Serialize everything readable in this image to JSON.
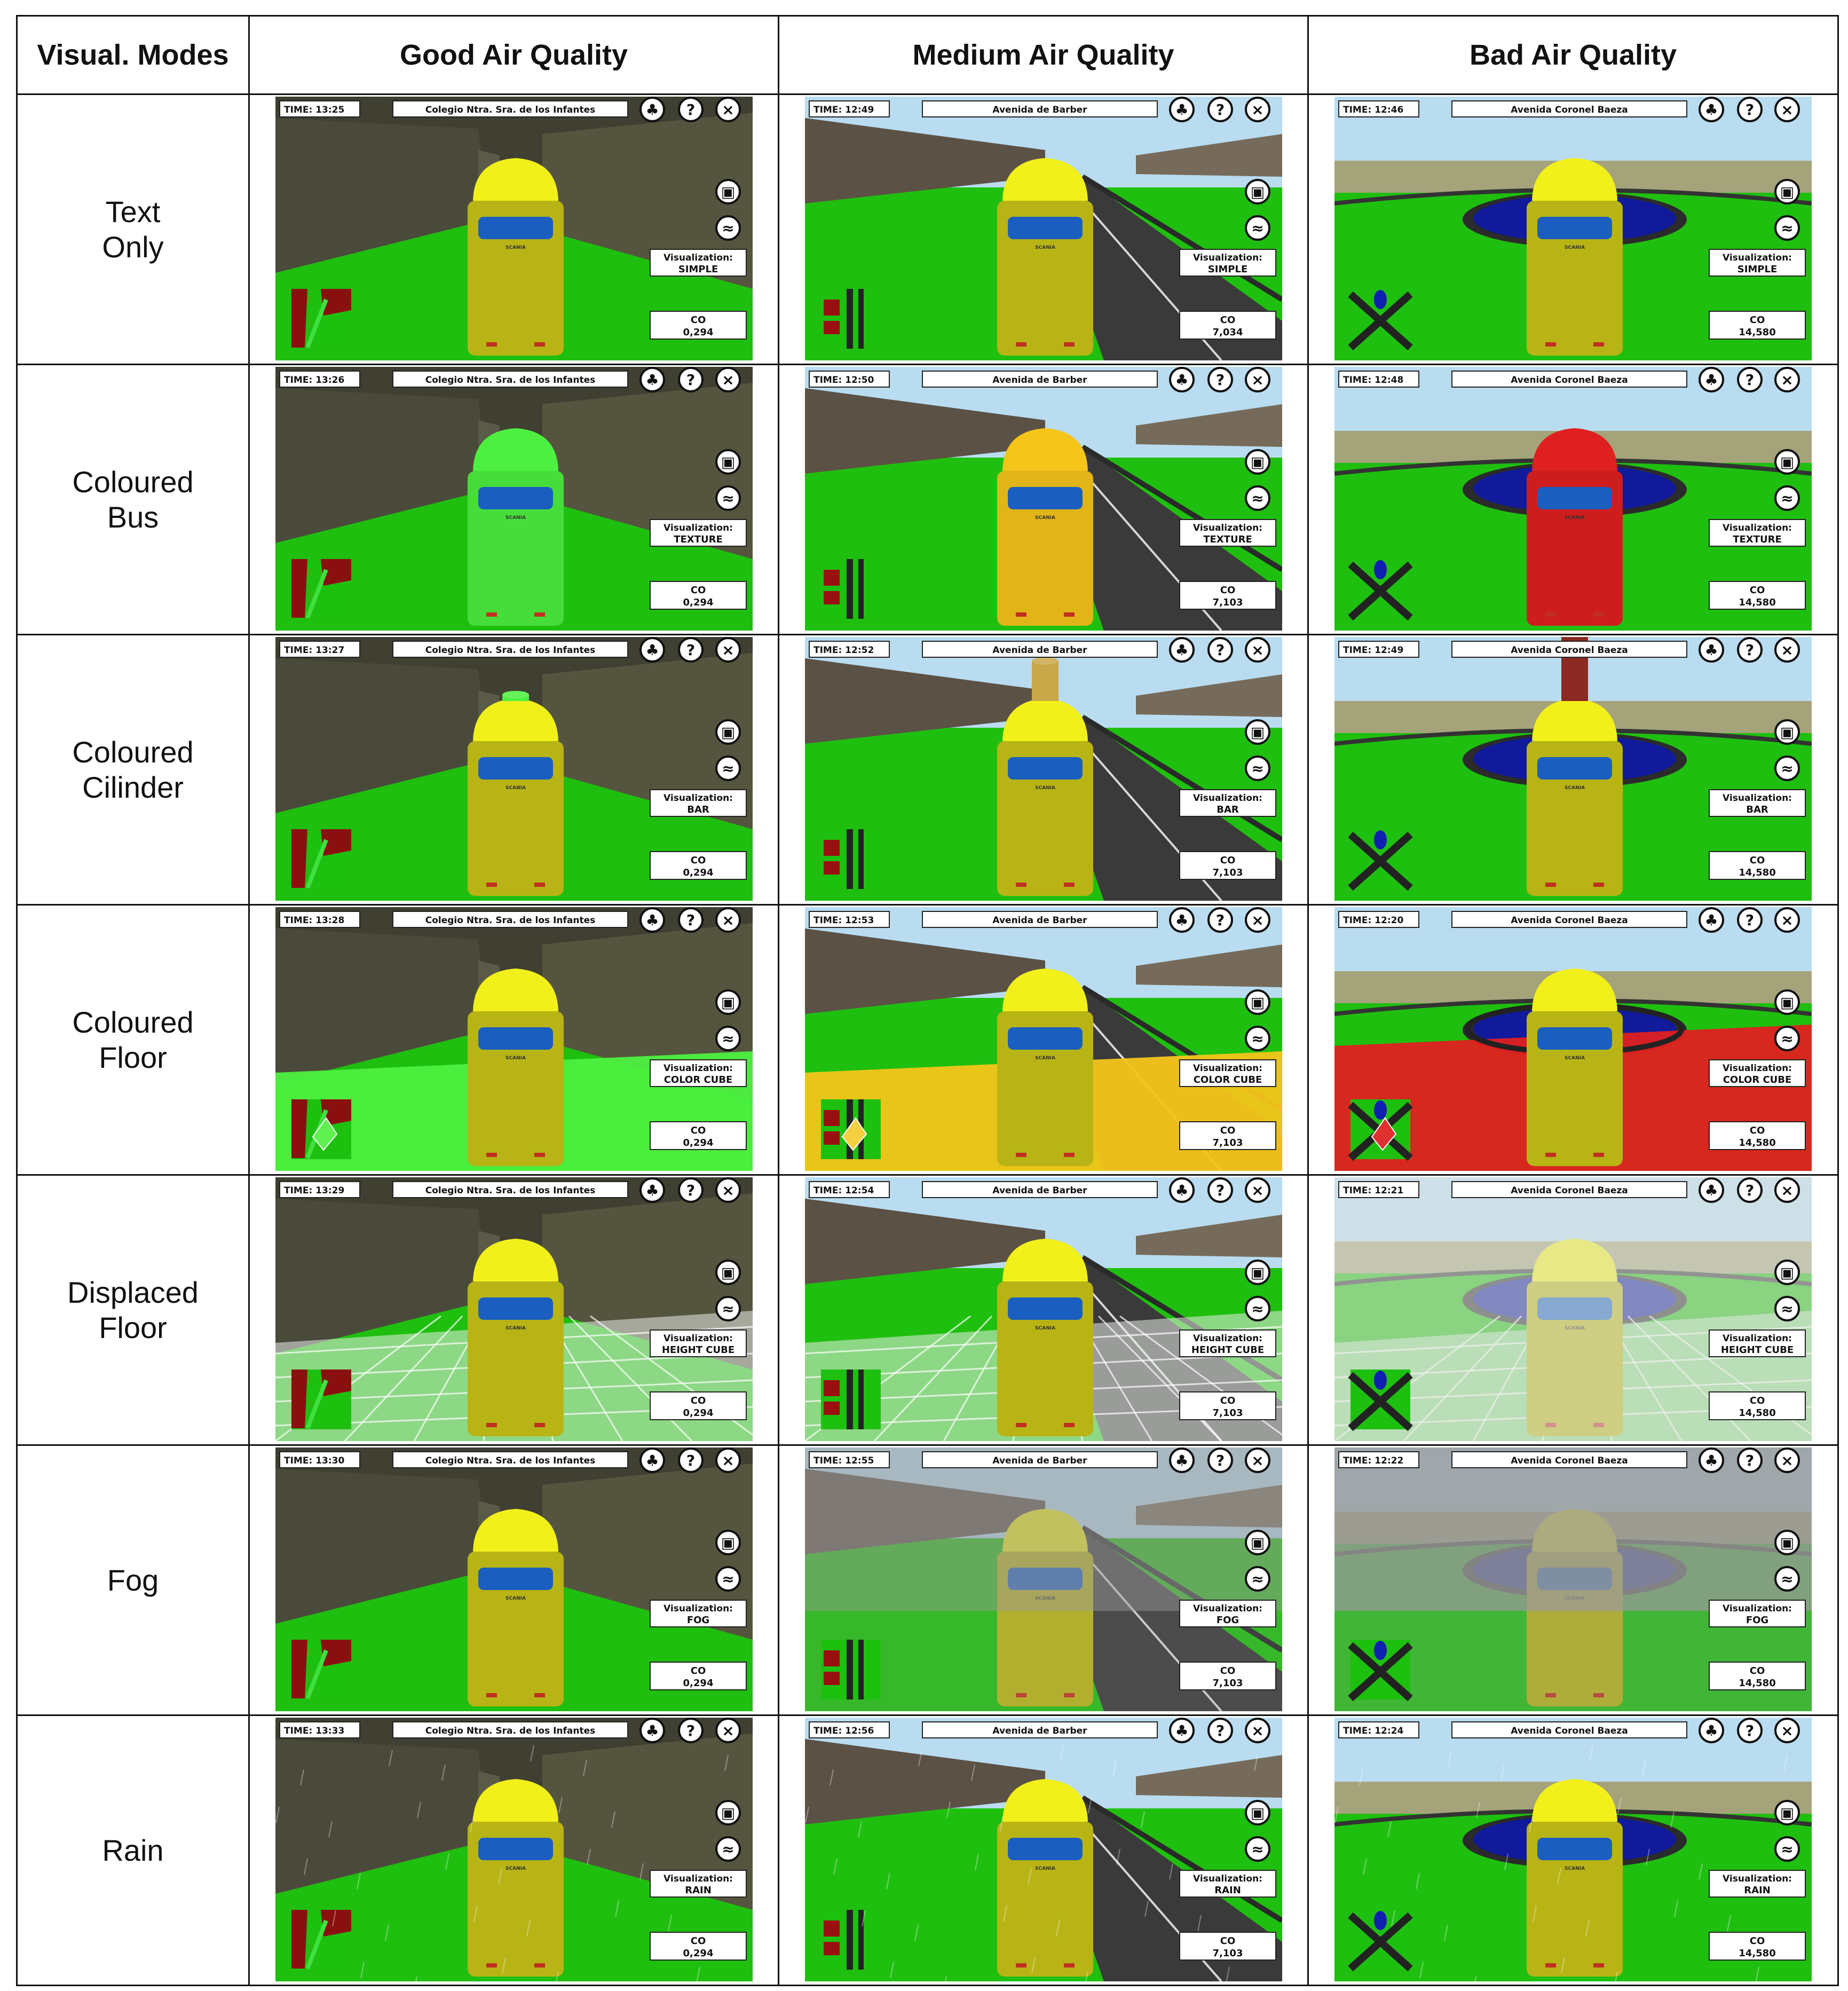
{
  "headers": [
    "Visual. Modes",
    "Good Air Quality",
    "Medium Air Quality",
    "Bad Air Quality"
  ],
  "columns": [
    {
      "key": "good",
      "location": "Colegio Ntra. Sra. de los Infantes",
      "co": "0,294",
      "scene": "buildings",
      "map": "good"
    },
    {
      "key": "medium",
      "location": "Avenida de Barber",
      "co": "7,103",
      "scene": "road",
      "map": "medium"
    },
    {
      "key": "bad",
      "location": "Avenida Coronel Baeza",
      "co": "14,580",
      "scene": "roundabout",
      "map": "bad"
    }
  ],
  "rows": [
    {
      "label": "Text\nOnly",
      "viz": "SIMPLE",
      "effect": "none",
      "times": [
        "TIME: 13:25",
        "TIME: 12:49",
        "TIME: 12:46"
      ],
      "co_override": {
        "medium": "7,034"
      }
    },
    {
      "label": "Coloured\nBus",
      "viz": "TEXTURE",
      "effect": "bus",
      "times": [
        "TIME: 13:26",
        "TIME: 12:50",
        "TIME: 12:48"
      ]
    },
    {
      "label": "Coloured\nCilinder",
      "viz": "BAR",
      "effect": "cylinder",
      "times": [
        "TIME: 13:27",
        "TIME: 12:52",
        "TIME: 12:49"
      ]
    },
    {
      "label": "Coloured\nFloor",
      "viz": "COLOR CUBE",
      "effect": "floor",
      "times": [
        "TIME: 13:28",
        "TIME: 12:53",
        "TIME: 12:20"
      ]
    },
    {
      "label": "Displaced\nFloor",
      "viz": "HEIGHT CUBE",
      "effect": "displaced",
      "times": [
        "TIME: 13:29",
        "TIME: 12:54",
        "TIME: 12:21"
      ]
    },
    {
      "label": "Fog",
      "viz": "FOG",
      "effect": "fog",
      "times": [
        "TIME: 13:30",
        "TIME: 12:55",
        "TIME: 12:22"
      ]
    },
    {
      "label": "Rain",
      "viz": "RAIN",
      "effect": "rain",
      "times": [
        "TIME: 13:33",
        "TIME: 12:56",
        "TIME: 12:24"
      ]
    }
  ],
  "hud": {
    "viz_label": "Visualization:",
    "co_label": "CO",
    "brand": "SCANIA"
  },
  "colors": {
    "grass": "#1fbf0f",
    "building": "#4a4a3a",
    "sky": "#b9dcf0",
    "road": "#3a3a3a",
    "bus_yellow": "#f2f01a",
    "bus_body": "#c8c418",
    "window": "#1a5fbf",
    "good": "#4df040",
    "medium": "#f5c51a",
    "bad": "#e02020",
    "water": "#101a9a"
  },
  "icons": [
    "trees-icon",
    "help-icon",
    "close-icon",
    "bus-icon",
    "chart-icon"
  ]
}
